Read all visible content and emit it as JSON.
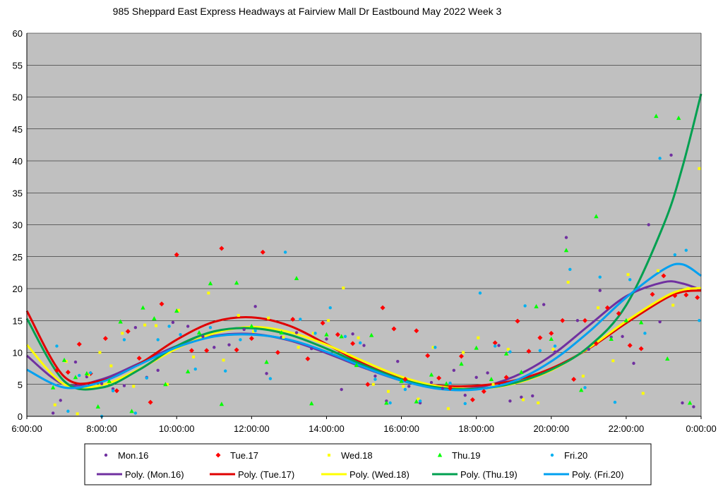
{
  "chart_data": {
    "type": "scatter",
    "title": "985 Sheppard East Express Headways at Fairview Mall Dr Eastbound May 2022  Week 3",
    "xlabel": "",
    "ylabel": "",
    "xlim": [
      6,
      24
    ],
    "ylim": [
      0,
      60
    ],
    "x_ticks": [
      "6:00:00",
      "8:00:00",
      "10:00:00",
      "12:00:00",
      "14:00:00",
      "16:00:00",
      "18:00:00",
      "20:00:00",
      "22:00:00",
      "0:00:00"
    ],
    "y_ticks": [
      "0",
      "5",
      "10",
      "15",
      "20",
      "25",
      "30",
      "35",
      "40",
      "45",
      "50",
      "55",
      "60"
    ],
    "grid": "horizontal",
    "legend_position": "bottom",
    "background": "#c0c0c0",
    "series": [
      {
        "name": "Mon.16",
        "marker": "circle",
        "color": "#7030a0",
        "x": [
          6.7,
          6.9,
          7.3,
          7.6,
          8.0,
          8.3,
          8.6,
          8.9,
          9.2,
          9.5,
          9.9,
          10.3,
          10.7,
          11.0,
          11.4,
          11.8,
          12.1,
          12.4,
          12.8,
          13.2,
          13.6,
          14.0,
          14.4,
          14.7,
          15.0,
          15.3,
          15.6,
          15.9,
          16.2,
          16.5,
          16.8,
          17.1,
          17.4,
          17.7,
          18.0,
          18.3,
          18.6,
          18.9,
          19.2,
          19.5,
          19.8,
          20.1,
          20.4,
          20.7,
          21.0,
          21.3,
          21.6,
          21.9,
          22.2,
          22.6,
          22.9,
          23.2,
          23.5,
          23.8
        ],
        "y": [
          0.5,
          2.5,
          8.5,
          6.2,
          5.1,
          4.3,
          4.8,
          13.9,
          6.1,
          7.2,
          14.7,
          14.1,
          12.5,
          10.8,
          11.2,
          13.6,
          17.2,
          6.7,
          12.4,
          13.1,
          10.6,
          12.1,
          4.2,
          12.9,
          11.1,
          6.3,
          2.4,
          8.6,
          4.7,
          2.1,
          5.3,
          4.4,
          7.2,
          3.3,
          6.1,
          6.8,
          11.1,
          2.4,
          3.0,
          3.2,
          17.5,
          10.1,
          28.0,
          15.0,
          10.5,
          19.7,
          12.4,
          12.5,
          8.3,
          30.0,
          14.8,
          40.9,
          2.1,
          1.5
        ]
      },
      {
        "name": "Tue.17",
        "marker": "diamond",
        "color": "#ff0000",
        "x": [
          6.8,
          7.1,
          7.4,
          7.7,
          8.1,
          8.4,
          8.7,
          9.0,
          9.3,
          9.6,
          10.0,
          10.4,
          10.8,
          11.2,
          11.6,
          12.0,
          12.3,
          12.7,
          13.1,
          13.5,
          13.9,
          14.3,
          14.7,
          15.1,
          15.5,
          15.8,
          16.1,
          16.4,
          16.7,
          17.0,
          17.3,
          17.6,
          17.9,
          18.2,
          18.5,
          18.8,
          19.1,
          19.4,
          19.7,
          20.0,
          20.3,
          20.6,
          20.9,
          21.2,
          21.5,
          21.8,
          22.1,
          22.4,
          22.7,
          23.0,
          23.3,
          23.6,
          23.9
        ],
        "y": [
          7.2,
          6.9,
          11.3,
          6.7,
          12.2,
          4.0,
          13.3,
          9.1,
          2.2,
          17.6,
          25.3,
          10.3,
          10.3,
          26.3,
          10.4,
          12.2,
          25.7,
          10.0,
          15.2,
          9.0,
          14.6,
          12.8,
          11.4,
          5.0,
          17.0,
          13.7,
          5.8,
          13.4,
          9.5,
          6.0,
          4.4,
          9.4,
          2.6,
          3.9,
          11.5,
          6.1,
          14.9,
          10.2,
          12.3,
          13.0,
          15.0,
          5.8,
          15.0,
          11.4,
          17.0,
          16.1,
          11.1,
          10.6,
          19.1,
          22.0,
          18.9,
          19.0,
          18.6
        ]
      },
      {
        "name": "Wed.18",
        "marker": "square",
        "color": "#ffff00",
        "x": [
          6.75,
          7.05,
          7.35,
          7.65,
          7.95,
          8.25,
          8.55,
          8.85,
          9.15,
          9.45,
          9.75,
          10.05,
          10.45,
          10.85,
          11.25,
          11.65,
          12.05,
          12.45,
          12.85,
          13.25,
          13.65,
          14.05,
          14.45,
          14.85,
          15.25,
          15.65,
          16.05,
          16.45,
          16.85,
          17.25,
          17.65,
          18.05,
          18.45,
          18.85,
          19.25,
          19.65,
          20.05,
          20.45,
          20.85,
          21.25,
          21.65,
          22.05,
          22.45,
          22.85,
          23.25,
          23.65,
          23.95
        ],
        "y": [
          1.8,
          8.6,
          0.4,
          6.5,
          10.0,
          7.9,
          13.0,
          4.7,
          14.3,
          14.2,
          5.0,
          16.6,
          9.3,
          19.3,
          8.8,
          15.8,
          13.3,
          15.4,
          12.4,
          10.8,
          13.0,
          15.0,
          20.1,
          12.3,
          5.0,
          3.9,
          4.7,
          2.7,
          10.8,
          1.2,
          10.0,
          12.3,
          5.0,
          10.5,
          2.6,
          2.1,
          10.5,
          21.0,
          6.3,
          17.0,
          8.7,
          22.2,
          3.6,
          22.8,
          17.4,
          20.0,
          38.8
        ]
      },
      {
        "name": "Thu.19",
        "marker": "triangle",
        "color": "#00ff00",
        "x": [
          6.7,
          7.0,
          7.3,
          7.6,
          7.9,
          8.2,
          8.5,
          8.8,
          9.1,
          9.4,
          9.7,
          10.0,
          10.3,
          10.6,
          10.9,
          11.2,
          11.6,
          12.0,
          12.4,
          12.8,
          13.2,
          13.6,
          14.0,
          14.4,
          14.8,
          15.2,
          15.6,
          16.0,
          16.4,
          16.8,
          17.2,
          17.6,
          18.0,
          18.4,
          18.8,
          19.2,
          19.6,
          20.0,
          20.4,
          20.8,
          21.2,
          21.6,
          22.0,
          22.4,
          22.8,
          23.1,
          23.4,
          23.7
        ],
        "y": [
          4.5,
          8.8,
          6.1,
          6.7,
          1.5,
          5.5,
          14.8,
          0.8,
          17.0,
          15.3,
          5.0,
          16.5,
          7.0,
          13.1,
          20.8,
          1.9,
          20.9,
          14.1,
          8.5,
          13.1,
          21.6,
          2.0,
          12.8,
          12.5,
          8.0,
          12.7,
          2.1,
          5.5,
          2.3,
          6.5,
          5.1,
          8.2,
          10.7,
          5.8,
          9.8,
          6.9,
          17.2,
          12.1,
          26.0,
          4.1,
          31.3,
          12.1,
          15.0,
          14.7,
          47.0,
          9.0,
          46.7,
          2.1
        ]
      },
      {
        "name": "Fri.20",
        "marker": "circle",
        "color": "#00b0f0",
        "x": [
          6.8,
          7.1,
          7.4,
          7.7,
          8.0,
          8.3,
          8.6,
          8.9,
          9.2,
          9.5,
          9.8,
          10.1,
          10.5,
          10.9,
          11.3,
          11.7,
          12.1,
          12.5,
          12.9,
          13.3,
          13.7,
          14.1,
          14.5,
          14.9,
          15.3,
          15.7,
          16.1,
          16.5,
          16.9,
          17.3,
          17.7,
          18.1,
          18.5,
          18.9,
          19.3,
          19.7,
          20.1,
          20.5,
          20.9,
          21.3,
          21.7,
          22.1,
          22.5,
          22.9,
          23.3,
          23.6,
          23.95
        ],
        "y": [
          11.0,
          0.8,
          6.4,
          6.8,
          0.0,
          4.0,
          12.0,
          0.5,
          6.0,
          12.0,
          14.1,
          12.8,
          7.4,
          13.9,
          7.1,
          12.0,
          13.4,
          5.9,
          25.7,
          15.2,
          13.0,
          17.0,
          12.5,
          11.5,
          5.8,
          2.1,
          4.2,
          2.4,
          10.8,
          5.2,
          2.0,
          19.3,
          11.0,
          10.1,
          17.3,
          10.3,
          11.0,
          23.0,
          4.5,
          21.8,
          2.2,
          21.4,
          13.0,
          40.4,
          25.3,
          26.0,
          15.0
        ]
      },
      {
        "name": "Poly. (Mon.16)",
        "type": "trend",
        "color": "#7030a0",
        "x": [
          6,
          7,
          8,
          9,
          10,
          11,
          12,
          13,
          14,
          15,
          16,
          17,
          18,
          19,
          20,
          21,
          22,
          23,
          23.5,
          24
        ],
        "y": [
          9.5,
          5.0,
          5.8,
          8.3,
          11.0,
          12.6,
          12.9,
          11.9,
          9.9,
          7.6,
          5.6,
          4.4,
          4.5,
          6.2,
          9.5,
          14.2,
          18.8,
          21.0,
          20.8,
          19.8
        ]
      },
      {
        "name": "Poly. (Tue.17)",
        "type": "trend",
        "color": "#e00000",
        "x": [
          6,
          7,
          8,
          9,
          10,
          11,
          12,
          13,
          14,
          15,
          16,
          17,
          18,
          19,
          20,
          21,
          22,
          23,
          23.5,
          24
        ],
        "y": [
          16.5,
          6.2,
          5.6,
          8.2,
          12.0,
          14.8,
          15.5,
          14.2,
          11.3,
          8.2,
          5.9,
          4.8,
          4.8,
          5.6,
          7.5,
          10.6,
          14.6,
          18.3,
          19.5,
          19.7
        ]
      },
      {
        "name": "Poly. (Wed.18)",
        "type": "trend",
        "color": "#ffff00",
        "x": [
          6,
          7,
          8,
          9,
          10,
          11,
          12,
          13,
          14,
          15,
          16,
          17,
          18,
          19,
          20,
          21,
          22,
          23,
          23.5,
          24
        ],
        "y": [
          11.2,
          5.0,
          4.9,
          7.4,
          10.6,
          13.0,
          14.0,
          13.2,
          11.2,
          8.6,
          6.2,
          4.7,
          4.3,
          5.1,
          7.2,
          10.7,
          14.9,
          18.6,
          19.8,
          20.1
        ]
      },
      {
        "name": "Poly. (Thu.19)",
        "type": "trend",
        "color": "#00a050",
        "x": [
          6,
          7,
          8,
          9,
          10,
          11,
          12,
          13,
          14,
          15,
          16,
          17,
          18,
          19,
          20,
          21,
          22,
          23,
          23.5,
          24
        ],
        "y": [
          15.3,
          5.5,
          4.5,
          7.3,
          11.0,
          13.3,
          13.8,
          12.8,
          10.6,
          8.0,
          5.8,
          4.5,
          4.3,
          5.2,
          7.3,
          10.9,
          17.4,
          30.0,
          39.0,
          50.5
        ]
      },
      {
        "name": "Poly. (Fri.20)",
        "type": "trend",
        "color": "#00a0f0",
        "x": [
          6,
          7,
          8,
          9,
          10,
          11,
          12,
          13,
          14,
          15,
          16,
          17,
          18,
          19,
          20,
          21,
          22,
          23,
          23.5,
          24
        ],
        "y": [
          7.3,
          4.5,
          5.4,
          8.1,
          10.8,
          12.5,
          12.8,
          12.0,
          10.1,
          7.7,
          5.6,
          4.3,
          4.2,
          5.5,
          8.6,
          13.2,
          18.6,
          23.0,
          23.8,
          22.0
        ]
      }
    ]
  }
}
